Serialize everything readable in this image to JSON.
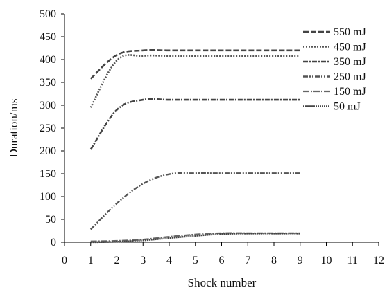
{
  "chart_data": {
    "type": "line",
    "title": "",
    "xlabel": "Shock number",
    "ylabel": "Duration/ms",
    "xlim": [
      0,
      12
    ],
    "ylim": [
      0,
      500
    ],
    "x_ticks": [
      "0",
      "1",
      "2",
      "3",
      "4",
      "5",
      "6",
      "7",
      "8",
      "9",
      "10",
      "11",
      "12"
    ],
    "y_ticks": [
      "0",
      "50",
      "100",
      "150",
      "200",
      "250",
      "300",
      "350",
      "400",
      "450",
      "500"
    ],
    "grid": false,
    "legend_position": "top-right",
    "x": [
      1,
      2,
      3,
      4,
      5,
      6,
      7,
      8,
      9
    ],
    "series": [
      {
        "name": "550 mJ",
        "values": [
          358,
          410,
          420,
          420,
          420,
          420,
          420,
          420,
          420
        ],
        "dash": "8,3",
        "width": 2.6,
        "color": "#444444"
      },
      {
        "name": "450 mJ",
        "values": [
          295,
          398,
          408,
          408,
          408,
          408,
          408,
          408,
          408
        ],
        "dash": "2,2",
        "width": 2.6,
        "color": "#555555"
      },
      {
        "name": "350 mJ",
        "values": [
          203,
          290,
          312,
          312,
          312,
          312,
          312,
          312,
          312
        ],
        "dash": "7,2,2,2",
        "width": 2.6,
        "color": "#444444"
      },
      {
        "name": "250 mJ",
        "values": [
          28,
          85,
          128,
          149,
          151,
          151,
          151,
          151,
          151
        ],
        "dash": "7,2,2,2,2,2",
        "width": 2.4,
        "color": "#555555"
      },
      {
        "name": "150 mJ",
        "values": [
          2,
          3,
          6,
          12,
          17,
          20,
          20,
          20,
          20
        ],
        "dash": "9,2,2,2",
        "width": 2.2,
        "color": "#666666"
      },
      {
        "name": "50 mJ",
        "values": [
          0,
          1,
          4,
          9,
          14,
          18,
          19,
          19,
          19
        ],
        "dash": "2,1",
        "width": 2.4,
        "color": "#444444"
      }
    ]
  }
}
